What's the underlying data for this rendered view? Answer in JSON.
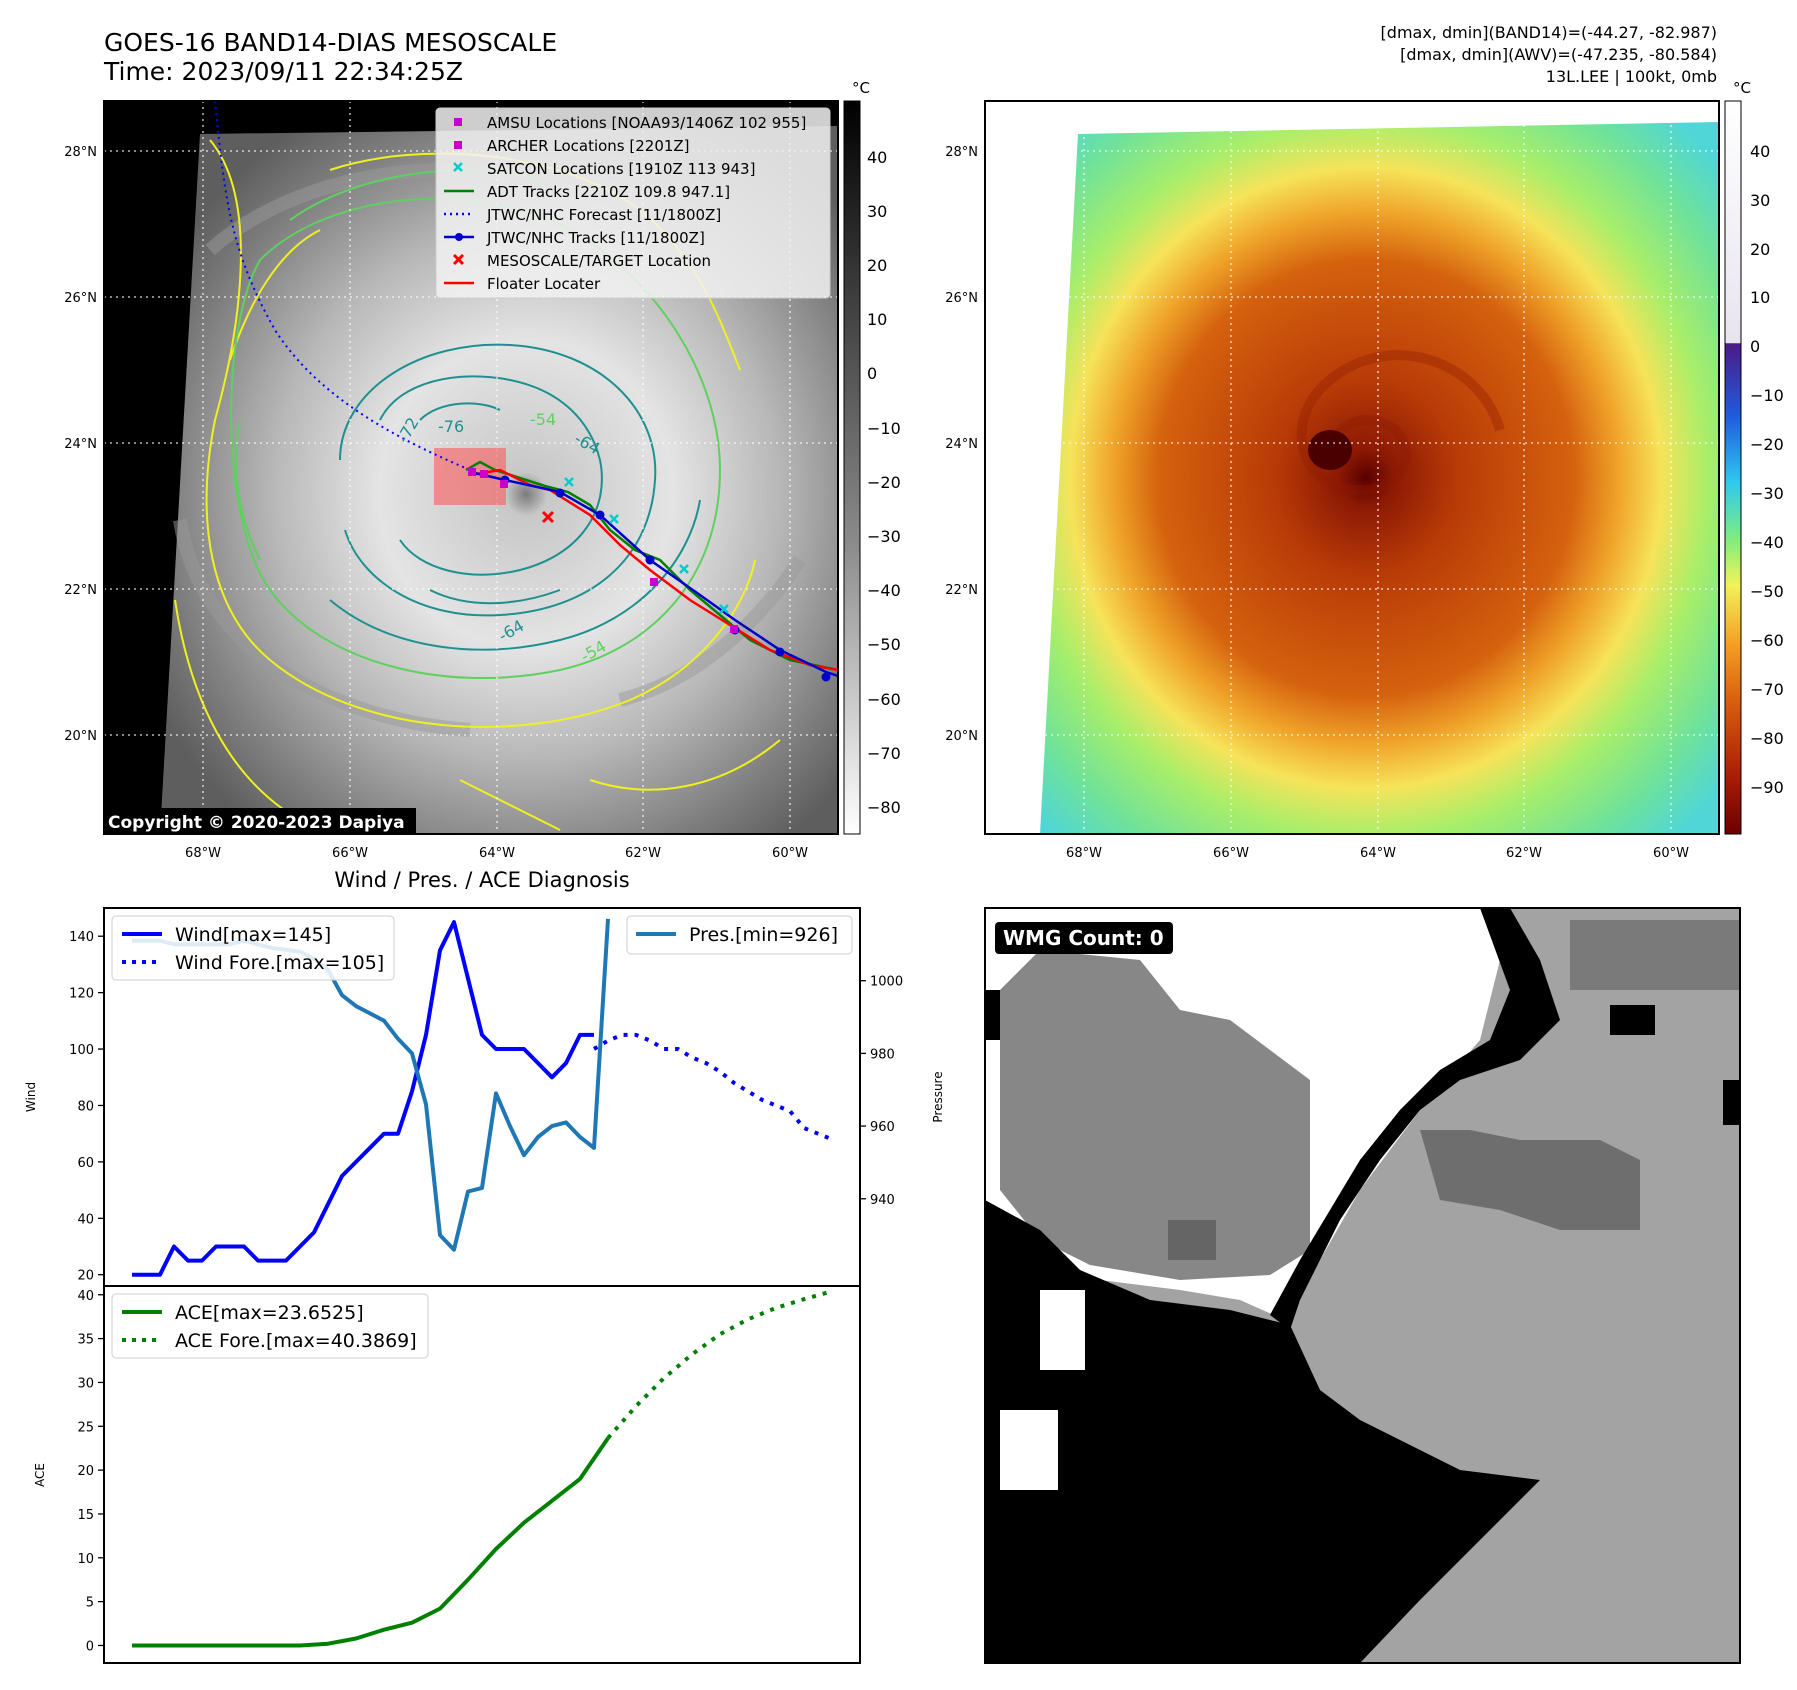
{
  "header": {
    "title_line1": "GOES-16 BAND14-DIAS MESOSCALE",
    "title_line2": "Time: 2023/09/11 22:34:25Z",
    "info_line1": "[dmax, dmin](BAND14)=(-44.27, -82.987)",
    "info_line2": "[dmax, dmin](AWV)=(-47.235, -80.584)",
    "info_line3": "13L.LEE | 100kt, 0mb"
  },
  "map": {
    "lat_ticks": [
      "28°N",
      "26°N",
      "24°N",
      "22°N",
      "20°N"
    ],
    "lon_ticks": [
      "68°W",
      "66°W",
      "64°W",
      "62°W",
      "60°W"
    ],
    "copyright": "Copyright © 2020-2023 Dapiya",
    "contour_labels": [
      "-76",
      "-72",
      "-64",
      "-64",
      "-54",
      "-54"
    ],
    "legend": [
      {
        "label": "AMSU Locations [NOAA93/1406Z 102 955]",
        "marker": "square",
        "color": "#cc00cc"
      },
      {
        "label": "ARCHER Locations [2201Z]",
        "marker": "square",
        "color": "#cc00cc"
      },
      {
        "label": "SATCON Locations [1910Z 113 943]",
        "marker": "x",
        "color": "#00cccc"
      },
      {
        "label": "ADT Tracks [2210Z 109.8 947.1]",
        "marker": "line",
        "color": "#008000"
      },
      {
        "label": "JTWC/NHC Forecast [11/1800Z]",
        "marker": "dotted",
        "color": "#0000ff"
      },
      {
        "label": "JTWC/NHC Tracks [11/1800Z]",
        "marker": "line-dot",
        "color": "#0000cc"
      },
      {
        "label": "MESOSCALE/TARGET Location",
        "marker": "x",
        "color": "#ff0000"
      },
      {
        "label": "Floater Locater",
        "marker": "line",
        "color": "#ff0000"
      }
    ]
  },
  "colorbar_left": {
    "unit": "°C",
    "ticks": [
      "40",
      "30",
      "20",
      "10",
      "0",
      "−10",
      "−20",
      "−30",
      "−40",
      "−50",
      "−60",
      "−70",
      "−80"
    ]
  },
  "colorbar_right": {
    "unit": "°C",
    "ticks": [
      "40",
      "30",
      "20",
      "10",
      "0",
      "−10",
      "−20",
      "−30",
      "−40",
      "−50",
      "−60",
      "−70",
      "−80",
      "−90"
    ]
  },
  "wmg": {
    "label": "WMG Count: 0"
  },
  "chart_data": [
    {
      "type": "line",
      "title": "Wind / Pres. / ACE Diagnosis",
      "ylabel": "Wind",
      "y2label": "Pressure",
      "ylim": [
        16,
        150
      ],
      "y2lim": [
        916,
        1020
      ],
      "yticks": [
        "20",
        "40",
        "60",
        "80",
        "100",
        "120",
        "140"
      ],
      "y2ticks": [
        "940",
        "960",
        "980",
        "1000"
      ],
      "series": [
        {
          "name": "Wind[max=145]",
          "axis": "left",
          "style": "solid",
          "color": "#0000ff",
          "x": [
            0,
            1,
            2,
            3,
            4,
            5,
            6,
            7,
            8,
            9,
            10,
            11,
            12,
            13,
            14,
            15,
            16,
            17,
            18,
            19,
            20,
            21,
            22,
            23,
            24,
            25,
            26,
            27,
            28,
            29,
            30,
            31,
            32,
            33
          ],
          "values": [
            20,
            20,
            20,
            30,
            25,
            25,
            30,
            30,
            30,
            25,
            25,
            25,
            30,
            35,
            45,
            55,
            60,
            65,
            70,
            70,
            85,
            105,
            135,
            145,
            125,
            105,
            100,
            100,
            100,
            95,
            90,
            95,
            105,
            105
          ]
        },
        {
          "name": "Wind Fore.[max=105]",
          "axis": "left",
          "style": "dotted",
          "color": "#0000ff",
          "x": [
            33,
            34,
            35,
            36,
            37,
            38,
            39,
            40,
            41,
            42,
            43,
            44,
            45,
            46,
            47,
            48,
            49,
            50
          ],
          "values": [
            100,
            103,
            105,
            105,
            103,
            100,
            100,
            97,
            95,
            92,
            88,
            85,
            82,
            80,
            78,
            72,
            70,
            68
          ]
        },
        {
          "name": "Pres.[min=926]",
          "axis": "right",
          "style": "solid",
          "color": "#1f77b4",
          "x": [
            0,
            2,
            3,
            5,
            7,
            8,
            9,
            10,
            12,
            13,
            14,
            15,
            16,
            17,
            18,
            19,
            20,
            21,
            22,
            23,
            24,
            25,
            26,
            27,
            28,
            29,
            30,
            31,
            32,
            33,
            34
          ],
          "values": [
            1011,
            1011,
            1010,
            1010,
            1010,
            1011,
            1010,
            1009,
            1008,
            1006,
            1003,
            996,
            993,
            991,
            989,
            984,
            980,
            966,
            930,
            926,
            942,
            943,
            969,
            960,
            952,
            957,
            960,
            961,
            957,
            954,
            1017
          ]
        }
      ]
    },
    {
      "type": "line",
      "ylabel": "ACE",
      "ylim": [
        -2,
        41
      ],
      "yticks": [
        "0",
        "5",
        "10",
        "15",
        "20",
        "25",
        "30",
        "35",
        "40"
      ],
      "series": [
        {
          "name": "ACE[max=23.6525]",
          "style": "solid",
          "color": "#008000",
          "x": [
            0,
            4,
            8,
            10,
            12,
            14,
            16,
            18,
            20,
            22,
            24,
            26,
            28,
            30,
            32,
            34
          ],
          "values": [
            0,
            0,
            0,
            0,
            0,
            0.2,
            0.8,
            1.8,
            2.6,
            4.2,
            7.5,
            11,
            14,
            16.5,
            19,
            23.65
          ]
        },
        {
          "name": "ACE Fore.[max=40.3869]",
          "style": "dotted",
          "color": "#008000",
          "x": [
            34,
            36,
            38,
            40,
            42,
            44,
            46,
            48,
            50
          ],
          "values": [
            23.65,
            27.3,
            30.5,
            33.2,
            35.5,
            37.2,
            38.5,
            39.5,
            40.39
          ]
        }
      ]
    }
  ]
}
